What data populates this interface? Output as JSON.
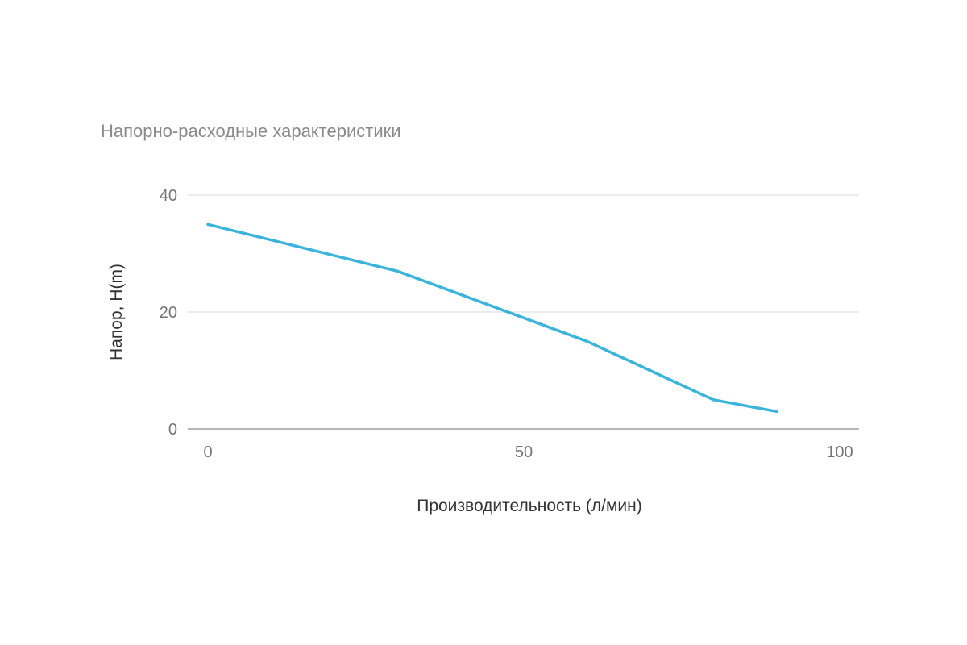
{
  "chart_data": {
    "type": "line",
    "title": "Напорно-расходные характеристики",
    "xlabel": "Производительность (л/мин)",
    "ylabel": "Напор, H(m)",
    "xlim": [
      0,
      100
    ],
    "ylim": [
      0,
      40
    ],
    "x_ticks": [
      "0",
      "50",
      "100"
    ],
    "y_ticks": [
      "0",
      "20",
      "40"
    ],
    "grid": true,
    "legend": "none",
    "series": [
      {
        "color": "#3bb4dc",
        "x": [
          0,
          30,
          60,
          80,
          90
        ],
        "y": [
          35,
          27,
          15,
          5,
          3
        ]
      }
    ]
  },
  "colors": {
    "line": "#3bb4dc",
    "grid": "#e0e0e0",
    "baseline": "#9e9e9e",
    "title": "#8a8a8a"
  }
}
